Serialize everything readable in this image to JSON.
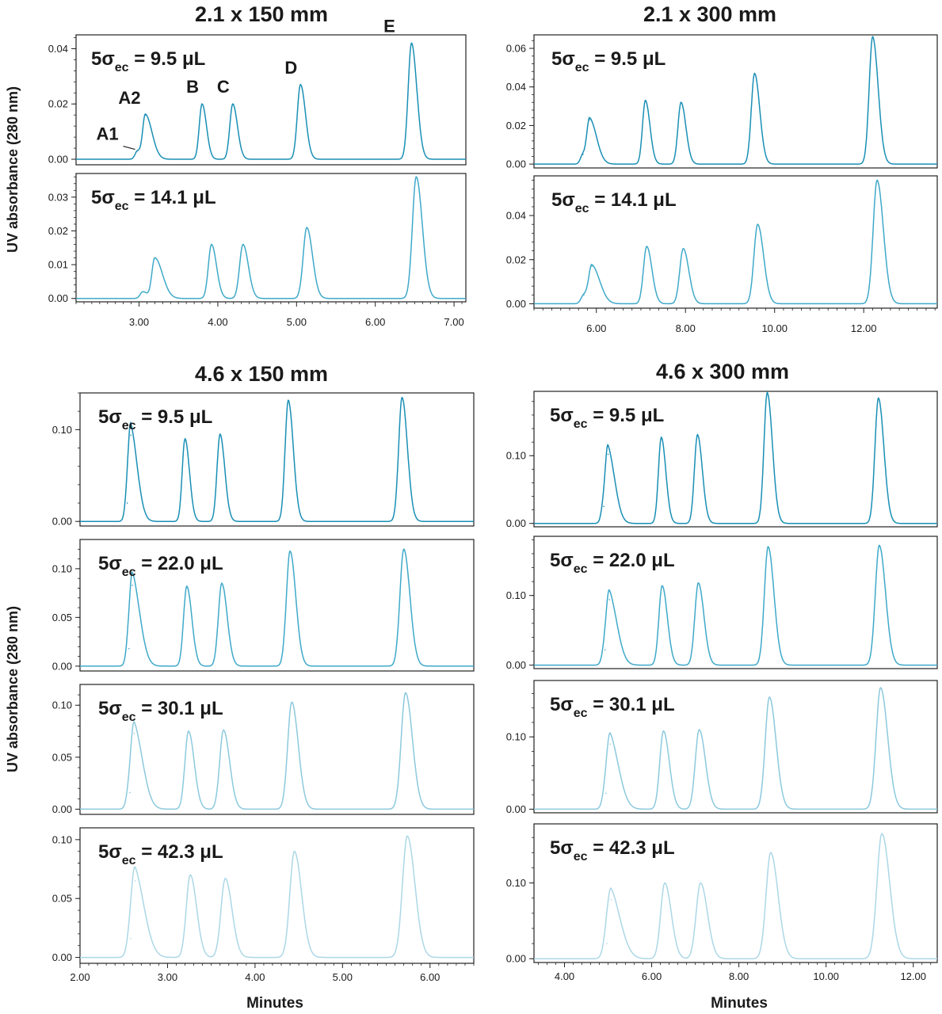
{
  "figure": {
    "ylabel_text": "UV absorbance (280 nm)",
    "xlabel_text": "Minutes",
    "trace_colors": [
      "#1a8fb5",
      "#3fa9c9",
      "#8cc9dd",
      "#acd7e6"
    ]
  },
  "chart_data": [
    {
      "type": "line",
      "title": "2.1 x 150 mm",
      "xlabel": "",
      "ylabel": "UV absorbance (280 nm)",
      "xlim": [
        2.2,
        7.15
      ],
      "xticks": [
        3.0,
        4.0,
        5.0,
        6.0,
        7.0
      ],
      "xtick_labels": [
        "3.00",
        "4.00",
        "5.00",
        "6.00",
        "7.00"
      ],
      "panels": [
        {
          "annotation": "5σec = 9.5 μL",
          "annotation_main": "5σ",
          "annotation_sub": "ec",
          "annotation_rest": " = 9.5 μL",
          "ylim": [
            -0.002,
            0.045
          ],
          "yticks": [
            0.0,
            0.02,
            0.04
          ],
          "ytick_labels": [
            "0.00",
            "0.02",
            "0.04"
          ],
          "color": "#1a8fb5",
          "peak_labels": [
            {
              "text": "A1",
              "x": 2.95
            },
            {
              "text": "A2",
              "x": 3.1
            },
            {
              "text": "B",
              "x": 3.8
            },
            {
              "text": "C",
              "x": 4.18
            },
            {
              "text": "D",
              "x": 5.05
            },
            {
              "text": "E",
              "x": 6.4
            }
          ],
          "peaks": [
            {
              "x": 2.98,
              "y": 0.003
            },
            {
              "x": 3.08,
              "y": 0.016
            },
            {
              "x": 3.8,
              "y": 0.02
            },
            {
              "x": 4.19,
              "y": 0.02
            },
            {
              "x": 5.05,
              "y": 0.027
            },
            {
              "x": 6.46,
              "y": 0.042
            }
          ]
        },
        {
          "annotation": "5σec = 14.1 μL",
          "annotation_main": "5σ",
          "annotation_sub": "ec",
          "annotation_rest": " = 14.1 μL",
          "ylim": [
            -0.001,
            0.037
          ],
          "yticks": [
            0.0,
            0.01,
            0.02,
            0.03
          ],
          "ytick_labels": [
            "0.00",
            "0.01",
            "0.02",
            "0.03"
          ],
          "color": "#3fa9c9",
          "peaks": [
            {
              "x": 3.05,
              "y": 0.002
            },
            {
              "x": 3.2,
              "y": 0.012
            },
            {
              "x": 3.92,
              "y": 0.016
            },
            {
              "x": 4.32,
              "y": 0.016
            },
            {
              "x": 5.13,
              "y": 0.021
            },
            {
              "x": 6.52,
              "y": 0.036
            }
          ]
        }
      ]
    },
    {
      "type": "line",
      "title": "2.1 x 300 mm",
      "xlabel": "",
      "ylabel": "",
      "xlim": [
        4.6,
        13.65
      ],
      "xticks": [
        6.0,
        8.0,
        10.0,
        12.0
      ],
      "xtick_labels": [
        "6.00",
        "8.00",
        "10.00",
        "12.00"
      ],
      "panels": [
        {
          "annotation": "5σec = 9.5 μL",
          "annotation_main": "5σ",
          "annotation_sub": "ec",
          "annotation_rest": " = 9.5 μL",
          "ylim": [
            -0.002,
            0.067
          ],
          "yticks": [
            0.0,
            0.02,
            0.04,
            0.06
          ],
          "ytick_labels": [
            "0.00",
            "0.02",
            "0.04",
            "0.06"
          ],
          "color": "#1a8fb5",
          "peaks": [
            {
              "x": 5.7,
              "y": 0.005
            },
            {
              "x": 5.85,
              "y": 0.023
            },
            {
              "x": 7.1,
              "y": 0.033
            },
            {
              "x": 7.9,
              "y": 0.032
            },
            {
              "x": 9.55,
              "y": 0.047
            },
            {
              "x": 12.2,
              "y": 0.066
            }
          ]
        },
        {
          "annotation": "5σec = 14.1 μL",
          "annotation_main": "5σ",
          "annotation_sub": "ec",
          "annotation_rest": " = 14.1 μL",
          "ylim": [
            -0.002,
            0.058
          ],
          "yticks": [
            0.0,
            0.02,
            0.04
          ],
          "ytick_labels": [
            "0.00",
            "0.02",
            "0.04"
          ],
          "color": "#3fa9c9",
          "peaks": [
            {
              "x": 5.72,
              "y": 0.004
            },
            {
              "x": 5.9,
              "y": 0.017
            },
            {
              "x": 7.13,
              "y": 0.026
            },
            {
              "x": 7.95,
              "y": 0.025
            },
            {
              "x": 9.62,
              "y": 0.036
            },
            {
              "x": 12.3,
              "y": 0.056
            }
          ]
        }
      ]
    },
    {
      "type": "line",
      "title": "4.6 x 150 mm",
      "xlabel": "Minutes",
      "ylabel": "UV absorbance (280 nm)",
      "xlim": [
        2.0,
        6.5
      ],
      "xticks": [
        2.0,
        3.0,
        4.0,
        5.0,
        6.0
      ],
      "xtick_labels": [
        "2.00",
        "3.00",
        "4.00",
        "5.00",
        "6.00"
      ],
      "panels": [
        {
          "annotation": "5σec = 9.5 μL",
          "annotation_main": "5σ",
          "annotation_sub": "ec",
          "annotation_rest": " = 9.5 μL",
          "ylim": [
            -0.005,
            0.14
          ],
          "yticks": [
            0.0,
            0.1
          ],
          "ytick_labels": [
            "0.00",
            "0.10"
          ],
          "color": "#1a8fb5",
          "peaks": [
            {
              "x": 2.54,
              "y": 0.02
            },
            {
              "x": 2.58,
              "y": 0.094
            },
            {
              "x": 3.2,
              "y": 0.09
            },
            {
              "x": 3.6,
              "y": 0.095
            },
            {
              "x": 4.38,
              "y": 0.132
            },
            {
              "x": 5.68,
              "y": 0.135
            }
          ]
        },
        {
          "annotation": "5σec = 22.0 μL",
          "annotation_main": "5σ",
          "annotation_sub": "ec",
          "annotation_rest": " = 22.0 μL",
          "ylim": [
            -0.005,
            0.13
          ],
          "yticks": [
            0.0,
            0.05,
            0.1
          ],
          "ytick_labels": [
            "0.00",
            "0.05",
            "0.10"
          ],
          "color": "#3fa9c9",
          "peaks": [
            {
              "x": 2.56,
              "y": 0.018
            },
            {
              "x": 2.6,
              "y": 0.083
            },
            {
              "x": 3.22,
              "y": 0.082
            },
            {
              "x": 3.62,
              "y": 0.085
            },
            {
              "x": 4.4,
              "y": 0.118
            },
            {
              "x": 5.7,
              "y": 0.12
            }
          ]
        },
        {
          "annotation": "5σec = 30.1 μL",
          "annotation_main": "5σ",
          "annotation_sub": "ec",
          "annotation_rest": " = 30.1 μL",
          "ylim": [
            -0.005,
            0.12
          ],
          "yticks": [
            0.0,
            0.05,
            0.1
          ],
          "ytick_labels": [
            "0.00",
            "0.05",
            "0.10"
          ],
          "color": "#8cc9dd",
          "peaks": [
            {
              "x": 2.57,
              "y": 0.016
            },
            {
              "x": 2.62,
              "y": 0.073
            },
            {
              "x": 3.24,
              "y": 0.075
            },
            {
              "x": 3.64,
              "y": 0.076
            },
            {
              "x": 4.42,
              "y": 0.103
            },
            {
              "x": 5.72,
              "y": 0.112
            }
          ]
        },
        {
          "annotation": "5σec = 42.3 μL",
          "annotation_main": "5σ",
          "annotation_sub": "ec",
          "annotation_rest": " = 42.3 μL",
          "ylim": [
            -0.005,
            0.11
          ],
          "yticks": [
            0.0,
            0.05,
            0.1
          ],
          "ytick_labels": [
            "0.00",
            "0.05",
            "0.10"
          ],
          "color": "#acd7e6",
          "peaks": [
            {
              "x": 2.58,
              "y": 0.016
            },
            {
              "x": 2.63,
              "y": 0.065
            },
            {
              "x": 3.26,
              "y": 0.07
            },
            {
              "x": 3.66,
              "y": 0.067
            },
            {
              "x": 4.45,
              "y": 0.09
            },
            {
              "x": 5.74,
              "y": 0.103
            }
          ]
        }
      ]
    },
    {
      "type": "line",
      "title": "4.6 x 300 mm",
      "xlabel": "Minutes",
      "ylabel": "",
      "xlim": [
        3.3,
        12.55
      ],
      "xticks": [
        4.0,
        6.0,
        8.0,
        10.0,
        12.0
      ],
      "xtick_labels": [
        "4.00",
        "6.00",
        "8.00",
        "10.00",
        "12.00"
      ],
      "panels": [
        {
          "annotation": "5σec = 9.5 μL",
          "annotation_main": "5σ",
          "annotation_sub": "ec",
          "annotation_rest": " = 9.5 μL",
          "ylim": [
            -0.005,
            0.195
          ],
          "yticks": [
            0.0,
            0.1
          ],
          "ytick_labels": [
            "0.00",
            "0.10"
          ],
          "color": "#1a8fb5",
          "peaks": [
            {
              "x": 4.9,
              "y": 0.025
            },
            {
              "x": 5.0,
              "y": 0.102
            },
            {
              "x": 6.22,
              "y": 0.127
            },
            {
              "x": 7.05,
              "y": 0.131
            },
            {
              "x": 8.65,
              "y": 0.193
            },
            {
              "x": 11.2,
              "y": 0.185
            }
          ]
        },
        {
          "annotation": "5σec = 22.0 μL",
          "annotation_main": "5σ",
          "annotation_sub": "ec",
          "annotation_rest": " = 22.0 μL",
          "ylim": [
            -0.005,
            0.185
          ],
          "yticks": [
            0.0,
            0.1
          ],
          "ytick_labels": [
            "0.00",
            "0.10"
          ],
          "color": "#3fa9c9",
          "peaks": [
            {
              "x": 4.93,
              "y": 0.022
            },
            {
              "x": 5.03,
              "y": 0.094
            },
            {
              "x": 6.24,
              "y": 0.114
            },
            {
              "x": 7.07,
              "y": 0.118
            },
            {
              "x": 8.67,
              "y": 0.17
            },
            {
              "x": 11.22,
              "y": 0.172
            }
          ]
        },
        {
          "annotation": "5σec = 30.1 μL",
          "annotation_main": "5σ",
          "annotation_sub": "ec",
          "annotation_rest": " = 30.1 μL",
          "ylim": [
            -0.005,
            0.178
          ],
          "yticks": [
            0.0,
            0.1
          ],
          "ytick_labels": [
            "0.00",
            "0.10"
          ],
          "color": "#8cc9dd",
          "peaks": [
            {
              "x": 4.95,
              "y": 0.022
            },
            {
              "x": 5.05,
              "y": 0.09
            },
            {
              "x": 6.27,
              "y": 0.108
            },
            {
              "x": 7.09,
              "y": 0.11
            },
            {
              "x": 8.7,
              "y": 0.155
            },
            {
              "x": 11.25,
              "y": 0.168
            }
          ]
        },
        {
          "annotation": "5σec = 42.3 μL",
          "annotation_main": "5σ",
          "annotation_sub": "ec",
          "annotation_rest": " = 42.3 μL",
          "ylim": [
            -0.005,
            0.178
          ],
          "yticks": [
            0.0,
            0.1
          ],
          "ytick_labels": [
            "0.00",
            "0.10"
          ],
          "color": "#acd7e6",
          "peaks": [
            {
              "x": 4.97,
              "y": 0.02
            },
            {
              "x": 5.07,
              "y": 0.078
            },
            {
              "x": 6.3,
              "y": 0.1
            },
            {
              "x": 7.12,
              "y": 0.1
            },
            {
              "x": 8.73,
              "y": 0.14
            },
            {
              "x": 11.28,
              "y": 0.165
            }
          ]
        }
      ]
    }
  ]
}
